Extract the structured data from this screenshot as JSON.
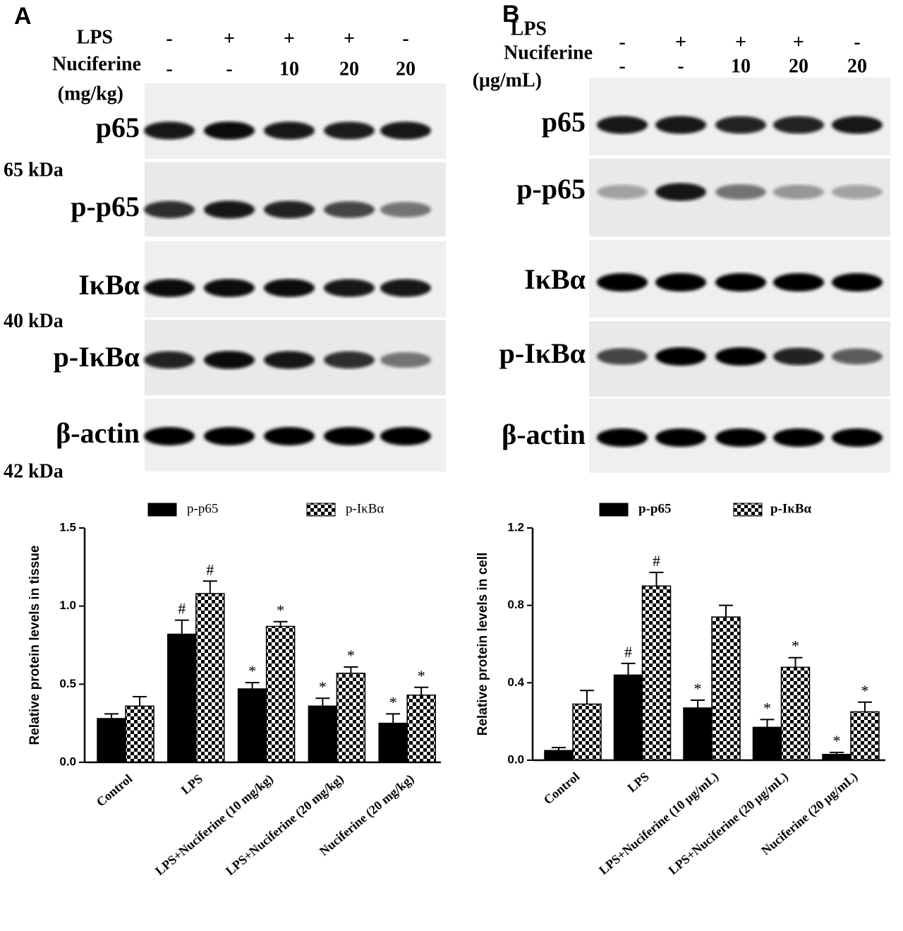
{
  "blot_panels": [
    {
      "letter": "A",
      "lps_label": "LPS",
      "nuciferine_label": "Nuciferine",
      "unit": "(mg/kg)",
      "lps": [
        "-",
        "+",
        "+",
        "+",
        "-"
      ],
      "nuciferine": [
        "-",
        "-",
        "10",
        "20",
        "20"
      ],
      "rows": [
        "p65",
        "p-p65",
        "IκBα",
        "p-IκBα",
        "β-actin"
      ],
      "markers": [
        "65 kDa",
        "40 kDa",
        "42 kDa"
      ]
    },
    {
      "letter": "B",
      "lps_label": "LPS",
      "nuciferine_label": "Nuciferine",
      "unit": "(μg/mL)",
      "lps": [
        "-",
        "+",
        "+",
        "+",
        "-"
      ],
      "nuciferine": [
        "-",
        "-",
        "10",
        "20",
        "20"
      ],
      "rows": [
        "p65",
        "p-p65",
        "IκBα",
        "p-IκBα",
        "β-actin"
      ]
    }
  ],
  "chart_data": [
    {
      "type": "bar",
      "y_label": "Relative protein levels in tissue",
      "categories": [
        "Control",
        "LPS",
        "LPS+Nuciferine (10 mg/kg)",
        "LPS+Nuciferine (20 mg/kg)",
        "Nuciferine (20 mg/kg)"
      ],
      "series": [
        {
          "name": "p-p65",
          "color": "#000000",
          "values": [
            0.28,
            0.82,
            0.47,
            0.36,
            0.25
          ],
          "errors": [
            0.03,
            0.09,
            0.04,
            0.05,
            0.06
          ],
          "annotations": [
            null,
            "#",
            "*",
            "*",
            "*"
          ]
        },
        {
          "name": "p-IκBα",
          "color": "#000000",
          "pattern": "checkerboard",
          "values": [
            0.36,
            1.08,
            0.87,
            0.57,
            0.43
          ],
          "errors": [
            0.06,
            0.08,
            0.03,
            0.04,
            0.05
          ],
          "annotations": [
            null,
            "#",
            "*",
            "*",
            "*"
          ]
        }
      ],
      "ylim": [
        0,
        1.5
      ],
      "yticks": [
        {
          "value": 0,
          "label": "0.0"
        },
        {
          "value": 0.5,
          "label": "0.5"
        },
        {
          "value": 1,
          "label": "1.0"
        },
        {
          "value": 1.5,
          "label": "1.5"
        }
      ]
    },
    {
      "type": "bar",
      "y_label": "Relative protein levels in cell",
      "categories": [
        "Control",
        "LPS",
        "LPS+Nuciferine (10 μg/mL)",
        "LPS+Nuciferine (20 μg/mL)",
        "Nuciferine (20  μg/mL)"
      ],
      "series": [
        {
          "name": "p-p65",
          "color": "#000000",
          "values": [
            0.05,
            0.44,
            0.27,
            0.17,
            0.03
          ],
          "errors": [
            0.015,
            0.06,
            0.04,
            0.04,
            0.01
          ],
          "annotations": [
            null,
            "#",
            "*",
            "*",
            "*"
          ]
        },
        {
          "name": "p-IκBα",
          "color": "#000000",
          "pattern": "checkerboard",
          "values": [
            0.29,
            0.9,
            0.74,
            0.48,
            0.25
          ],
          "errors": [
            0.07,
            0.07,
            0.06,
            0.05,
            0.05
          ],
          "annotations": [
            null,
            "#",
            null,
            "*",
            "*"
          ]
        }
      ],
      "ylim": [
        0,
        1.2
      ],
      "yticks": [
        {
          "value": 0,
          "label": "0.0"
        },
        {
          "value": 0.4,
          "label": "0.4"
        },
        {
          "value": 0.8,
          "label": "0.8"
        },
        {
          "value": 1.2,
          "label": "1.2"
        }
      ]
    }
  ]
}
